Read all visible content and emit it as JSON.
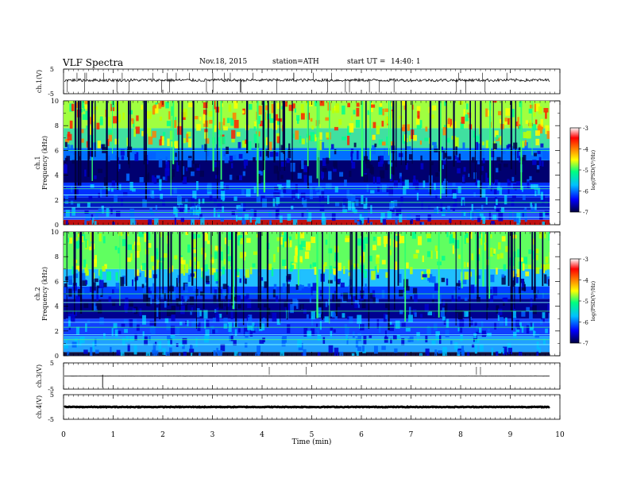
{
  "header": {
    "title": "VLF Spectra",
    "date": "Nov.18, 2015",
    "station": "station=ATH",
    "start": "start UT =",
    "start_time": "14:40: 1"
  },
  "chart_data": [
    {
      "type": "line",
      "ylabel": "ch.1(V)",
      "ylim": [
        -5,
        5
      ],
      "yticks": [
        "5",
        "-5"
      ],
      "xlim": [
        0,
        10
      ],
      "description_level": 0.5
    },
    {
      "type": "heatmap",
      "ylabel": [
        "ch.1",
        "Frequency (kHz)"
      ],
      "ylim": [
        0,
        10
      ],
      "yticks": [
        "0",
        "2",
        "4",
        "6",
        "8",
        "10"
      ],
      "xlim": [
        0,
        10
      ],
      "colorbar": {
        "label": "log(PSD(V²/Hz)",
        "range": [
          -7,
          -3
        ],
        "ticks": [
          "-3",
          "-4",
          "-5",
          "-6",
          "-7"
        ]
      }
    },
    {
      "type": "heatmap",
      "ylabel": [
        "ch.2",
        "Frequency (kHz)"
      ],
      "ylim": [
        0,
        10
      ],
      "yticks": [
        "0",
        "2",
        "4",
        "6",
        "8",
        "10"
      ],
      "xlim": [
        0,
        10
      ],
      "colorbar": {
        "label": "log(PSD(V²/Hz)",
        "range": [
          -7,
          -3
        ],
        "ticks": [
          "-3",
          "-4",
          "-5",
          "-6",
          "-7"
        ]
      }
    },
    {
      "type": "line",
      "ylabel": "ch.3(V)",
      "ylim": [
        -5,
        5
      ],
      "yticks": [
        "5",
        "-5"
      ],
      "xlim": [
        0,
        10
      ]
    },
    {
      "type": "line",
      "ylabel": "ch.4(V)",
      "ylim": [
        -5,
        5
      ],
      "yticks": [
        "5",
        "-5"
      ],
      "xlim": [
        0,
        10
      ]
    }
  ],
  "xaxis": {
    "label": "Time (min)",
    "ticks": [
      "0",
      "1",
      "2",
      "3",
      "4",
      "5",
      "6",
      "7",
      "8",
      "9",
      "10"
    ]
  },
  "colors": {
    "spectrogram_scale": [
      "#000040",
      "#0000ff",
      "#00c0ff",
      "#00ff80",
      "#ffff00",
      "#ff8000",
      "#ff0000",
      "#ffffff"
    ]
  }
}
